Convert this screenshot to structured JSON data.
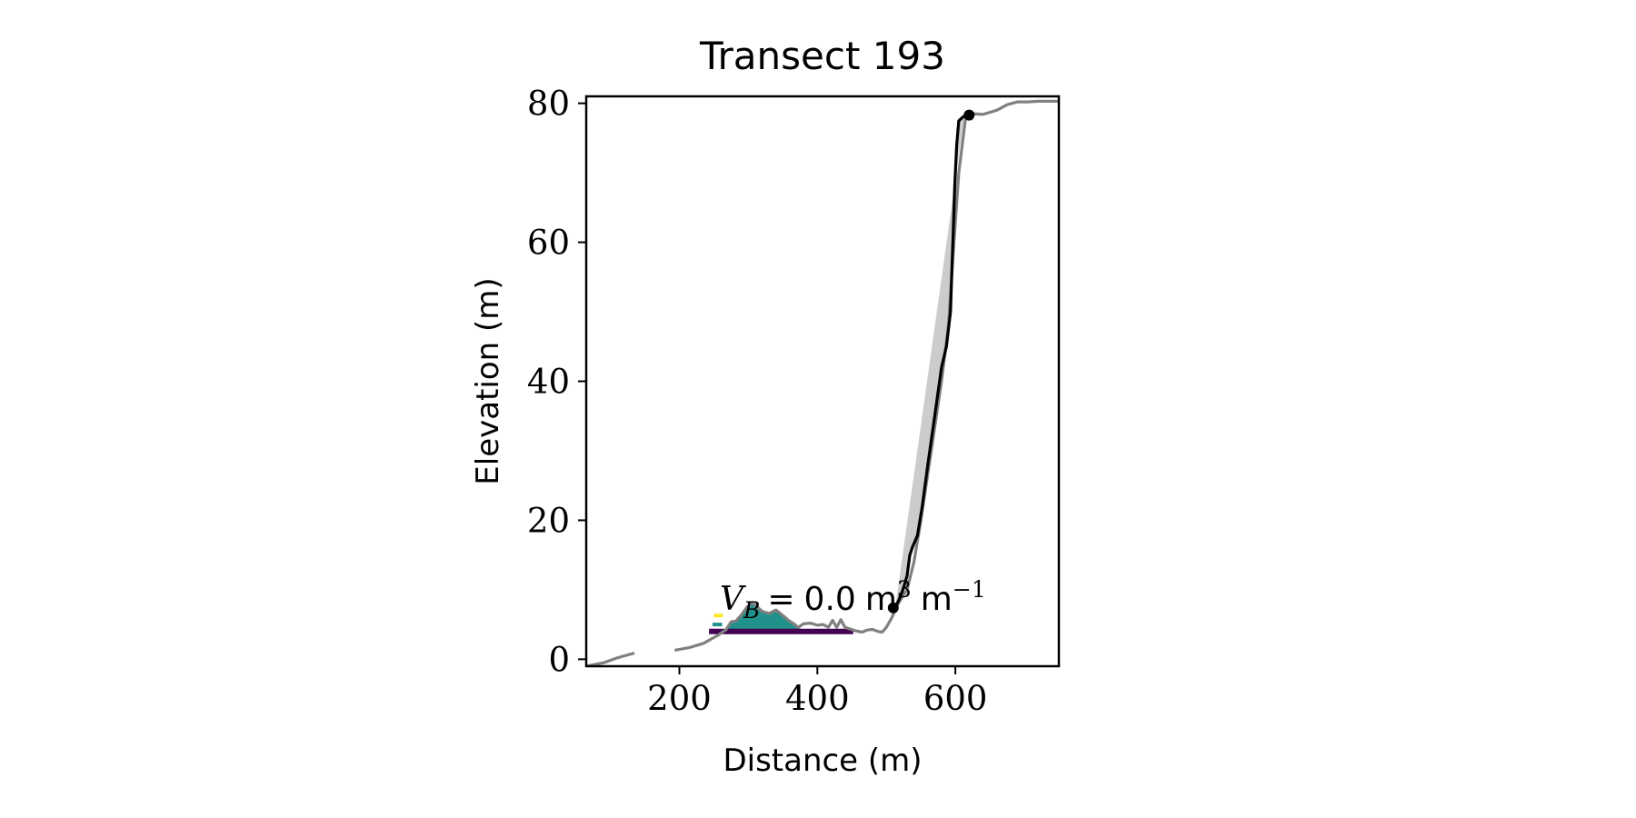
{
  "chart_data": {
    "type": "line",
    "title": "Transect 193",
    "xlabel": "Distance (m)",
    "ylabel": "Elevation (m)",
    "xlim": [
      65,
      750
    ],
    "ylim": [
      -1,
      81
    ],
    "x_ticks": [
      200,
      400,
      600
    ],
    "y_ticks": [
      0,
      20,
      40,
      60,
      80
    ],
    "x_tick_labels": [
      "200",
      "400",
      "600"
    ],
    "y_tick_labels": [
      "0",
      "20",
      "40",
      "60",
      "80"
    ],
    "grid": false,
    "legend": "none",
    "annotation": {
      "variable": "V",
      "subscript": "B",
      "equals": "=",
      "value": "0.0",
      "unit": "m",
      "unit_exp": "3",
      "per_unit": "m",
      "per_unit_exp": "−1"
    },
    "series": [
      {
        "style": "profile",
        "color": "#808080",
        "segments": [
          [
            [
              65,
              -1
            ],
            [
              75,
              -0.8
            ],
            [
              90,
              -0.5
            ],
            [
              110,
              0.2
            ],
            [
              135,
              0.9
            ]
          ],
          [
            [
              193,
              1.3
            ],
            [
              215,
              1.7
            ],
            [
              235,
              2.3
            ],
            [
              255,
              3.4
            ],
            [
              268,
              4.3
            ],
            [
              275,
              5.4
            ],
            [
              282,
              5.5
            ],
            [
              290,
              6.4
            ],
            [
              298,
              7.5
            ],
            [
              305,
              8.1
            ],
            [
              312,
              7.6
            ],
            [
              320,
              6.9
            ],
            [
              330,
              6.6
            ],
            [
              340,
              7.1
            ],
            [
              350,
              6.3
            ],
            [
              358,
              5.6
            ],
            [
              366,
              5.1
            ],
            [
              372,
              4.6
            ],
            [
              380,
              5.1
            ],
            [
              390,
              5.2
            ],
            [
              400,
              4.9
            ],
            [
              408,
              5.0
            ],
            [
              416,
              4.6
            ],
            [
              422,
              5.6
            ],
            [
              428,
              4.6
            ],
            [
              434,
              5.7
            ],
            [
              440,
              4.6
            ],
            [
              446,
              4.4
            ],
            [
              455,
              4.1
            ],
            [
              465,
              3.9
            ],
            [
              472,
              4.2
            ],
            [
              480,
              4.3
            ],
            [
              488,
              4.0
            ],
            [
              494,
              3.9
            ],
            [
              500,
              4.6
            ],
            [
              508,
              6.0
            ],
            [
              515,
              7.6
            ],
            [
              520,
              8.5
            ],
            [
              530,
              10
            ],
            [
              540,
              14
            ],
            [
              550,
              20
            ],
            [
              565,
              30
            ],
            [
              580,
              40
            ],
            [
              590,
              48
            ],
            [
              598,
              60
            ],
            [
              605,
              70
            ],
            [
              615,
              78
            ],
            [
              625,
              78.5
            ],
            [
              640,
              78.4
            ],
            [
              660,
              79
            ],
            [
              675,
              79.8
            ],
            [
              690,
              80.2
            ],
            [
              705,
              80.2
            ],
            [
              720,
              80.3
            ],
            [
              735,
              80.3
            ],
            [
              750,
              80.3
            ]
          ]
        ]
      },
      {
        "style": "cliff-line",
        "color": "#000000",
        "points": [
          [
            513,
            7.5
          ],
          [
            518,
            8.5
          ],
          [
            524,
            10
          ],
          [
            530,
            12
          ],
          [
            534,
            15
          ],
          [
            538,
            16.2
          ],
          [
            545,
            17.8
          ],
          [
            552,
            22
          ],
          [
            560,
            28
          ],
          [
            570,
            35
          ],
          [
            580,
            42
          ],
          [
            587,
            45
          ],
          [
            593,
            50
          ],
          [
            595,
            56
          ],
          [
            597,
            62
          ],
          [
            599,
            68
          ],
          [
            602,
            74
          ],
          [
            605,
            77.5
          ],
          [
            613,
            78.2
          ]
        ]
      },
      {
        "style": "cliff-fill",
        "color": "#cccccc",
        "points": [
          [
            513,
            7.5
          ],
          [
            613,
            78.2
          ],
          [
            605,
            77.5
          ],
          [
            602,
            74
          ],
          [
            599,
            68
          ],
          [
            597,
            62
          ],
          [
            595,
            56
          ],
          [
            593,
            50
          ],
          [
            587,
            45
          ],
          [
            580,
            42
          ],
          [
            570,
            35
          ],
          [
            560,
            28
          ],
          [
            552,
            22
          ],
          [
            545,
            17.8
          ],
          [
            538,
            16.2
          ],
          [
            534,
            15
          ],
          [
            530,
            12
          ],
          [
            524,
            10
          ],
          [
            518,
            8.5
          ]
        ]
      },
      {
        "style": "beach-fill",
        "color": "#21918c",
        "points": [
          [
            268,
            4.3
          ],
          [
            275,
            5.4
          ],
          [
            282,
            5.5
          ],
          [
            290,
            6.4
          ],
          [
            298,
            7.5
          ],
          [
            305,
            8.1
          ],
          [
            312,
            7.6
          ],
          [
            320,
            6.9
          ],
          [
            330,
            6.6
          ],
          [
            340,
            7.1
          ],
          [
            350,
            6.3
          ],
          [
            358,
            5.6
          ],
          [
            366,
            5.1
          ],
          [
            372,
            4.6
          ],
          [
            380,
            4.2
          ],
          [
            268,
            4.2
          ]
        ]
      },
      {
        "style": "beach-base",
        "color": "#440154",
        "points": [
          [
            243,
            4.0
          ],
          [
            452,
            4.0
          ]
        ]
      },
      {
        "style": "water-level-1",
        "color": "#fde725",
        "points": [
          [
            250,
            6.3
          ],
          [
            263,
            6.3
          ]
        ]
      },
      {
        "style": "water-level-2",
        "color": "#21918c",
        "points": [
          [
            248,
            5.0
          ],
          [
            262,
            5.0
          ]
        ]
      }
    ],
    "markers": [
      {
        "x": 510,
        "y": 7.4,
        "color": "#000000"
      },
      {
        "x": 620,
        "y": 78.3,
        "color": "#000000"
      }
    ]
  }
}
